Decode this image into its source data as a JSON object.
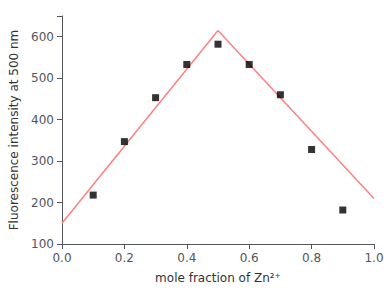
{
  "chart_data": {
    "type": "scatter",
    "xlabel": "mole fraction of Zn²⁺",
    "ylabel": "Fluorescence intensity at 500 nm",
    "series": [
      {
        "type": "line",
        "x": [
          0.0,
          0.5
        ],
        "values": [
          150,
          615
        ],
        "color": "#ff8080"
      },
      {
        "type": "line",
        "x": [
          0.5,
          1.0
        ],
        "values": [
          615,
          210
        ],
        "color": "#ff8080"
      },
      {
        "type": "scatter",
        "x": [
          0.1,
          0.2,
          0.3,
          0.4,
          0.5,
          0.6,
          0.7,
          0.8,
          0.9
        ],
        "values": [
          218,
          347,
          453,
          533,
          582,
          533,
          460,
          328,
          182
        ],
        "color": "black",
        "marker": "square"
      }
    ],
    "xlim": [
      0.0,
      1.0
    ],
    "ylim": [
      100,
      650
    ],
    "xticks": [
      {
        "value": 0,
        "label": "0.0"
      },
      0.2,
      0.4,
      0.6,
      0.8,
      {
        "value": 1,
        "label": "1.0"
      }
    ],
    "yticks": [
      100,
      200,
      300,
      400,
      500,
      600
    ],
    "grid": false
  }
}
